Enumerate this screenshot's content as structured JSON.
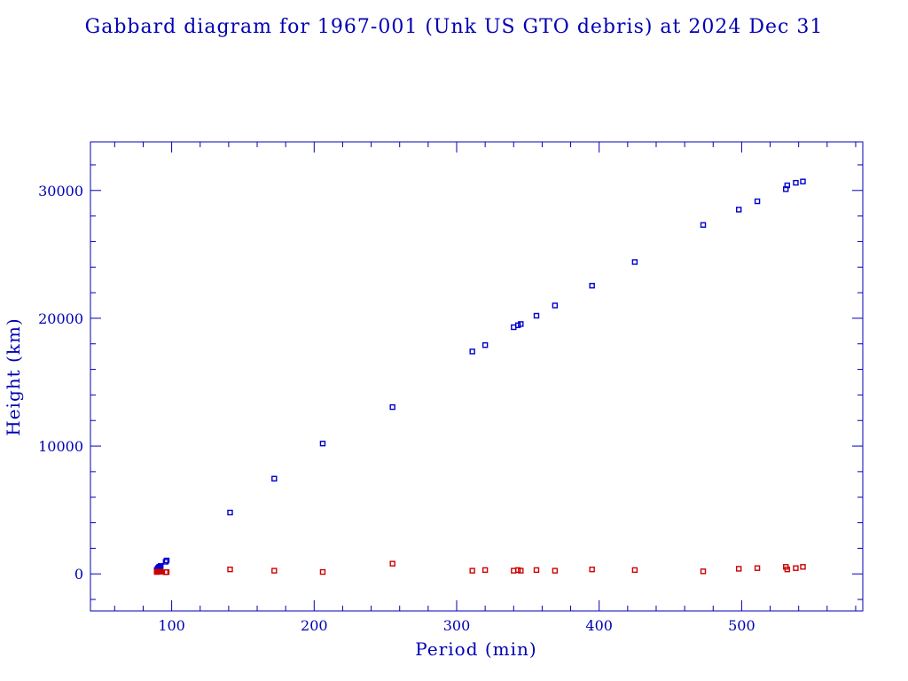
{
  "chart_data": {
    "type": "scatter",
    "title": "Gabbard diagram for 1967-001 (Unk US GTO debris) at 2024 Dec 31",
    "xlabel": "Period (min)",
    "ylabel": "Height (km)",
    "xlim": [
      43,
      585
    ],
    "ylim": [
      -2900,
      33800
    ],
    "x_ticks": [
      100,
      200,
      300,
      400,
      500
    ],
    "y_ticks": [
      0,
      10000,
      20000,
      30000
    ],
    "x_tick_labels": [
      "100",
      "200",
      "300",
      "400",
      "500"
    ],
    "y_tick_labels": [
      "0",
      "10000",
      "20000",
      "30000"
    ],
    "grid": false,
    "colors": {
      "axis": "#0000b4",
      "apogee": "#0000cc",
      "perigee": "#cc0000"
    },
    "series": [
      {
        "role": "apogee",
        "points": [
          [
            89.5,
            300
          ],
          [
            90.2,
            420
          ],
          [
            90.8,
            500
          ],
          [
            91.4,
            560
          ],
          [
            92.3,
            620
          ],
          [
            95.8,
            950
          ],
          [
            96.5,
            1050
          ],
          [
            141,
            4800
          ],
          [
            172,
            7450
          ],
          [
            206,
            10200
          ],
          [
            255,
            13050
          ],
          [
            311,
            17400
          ],
          [
            320,
            17900
          ],
          [
            340,
            19300
          ],
          [
            343,
            19450
          ],
          [
            345,
            19550
          ],
          [
            356,
            20200
          ],
          [
            369,
            21000
          ],
          [
            395,
            22550
          ],
          [
            425,
            24400
          ],
          [
            473,
            27300
          ],
          [
            498,
            28500
          ],
          [
            511,
            29150
          ],
          [
            531,
            30100
          ],
          [
            532,
            30400
          ],
          [
            538,
            30600
          ],
          [
            543,
            30700
          ]
        ]
      },
      {
        "role": "perigee",
        "points": [
          [
            89.5,
            150
          ],
          [
            90.2,
            160
          ],
          [
            90.8,
            170
          ],
          [
            91.4,
            175
          ],
          [
            92.3,
            180
          ],
          [
            95.8,
            130
          ],
          [
            96.5,
            140
          ],
          [
            141,
            350
          ],
          [
            172,
            250
          ],
          [
            206,
            150
          ],
          [
            255,
            800
          ],
          [
            311,
            250
          ],
          [
            320,
            300
          ],
          [
            340,
            250
          ],
          [
            343,
            300
          ],
          [
            345,
            250
          ],
          [
            356,
            300
          ],
          [
            369,
            250
          ],
          [
            395,
            350
          ],
          [
            425,
            300
          ],
          [
            473,
            200
          ],
          [
            498,
            400
          ],
          [
            511,
            450
          ],
          [
            531,
            550
          ],
          [
            532,
            350
          ],
          [
            538,
            450
          ],
          [
            543,
            550
          ]
        ]
      }
    ]
  }
}
